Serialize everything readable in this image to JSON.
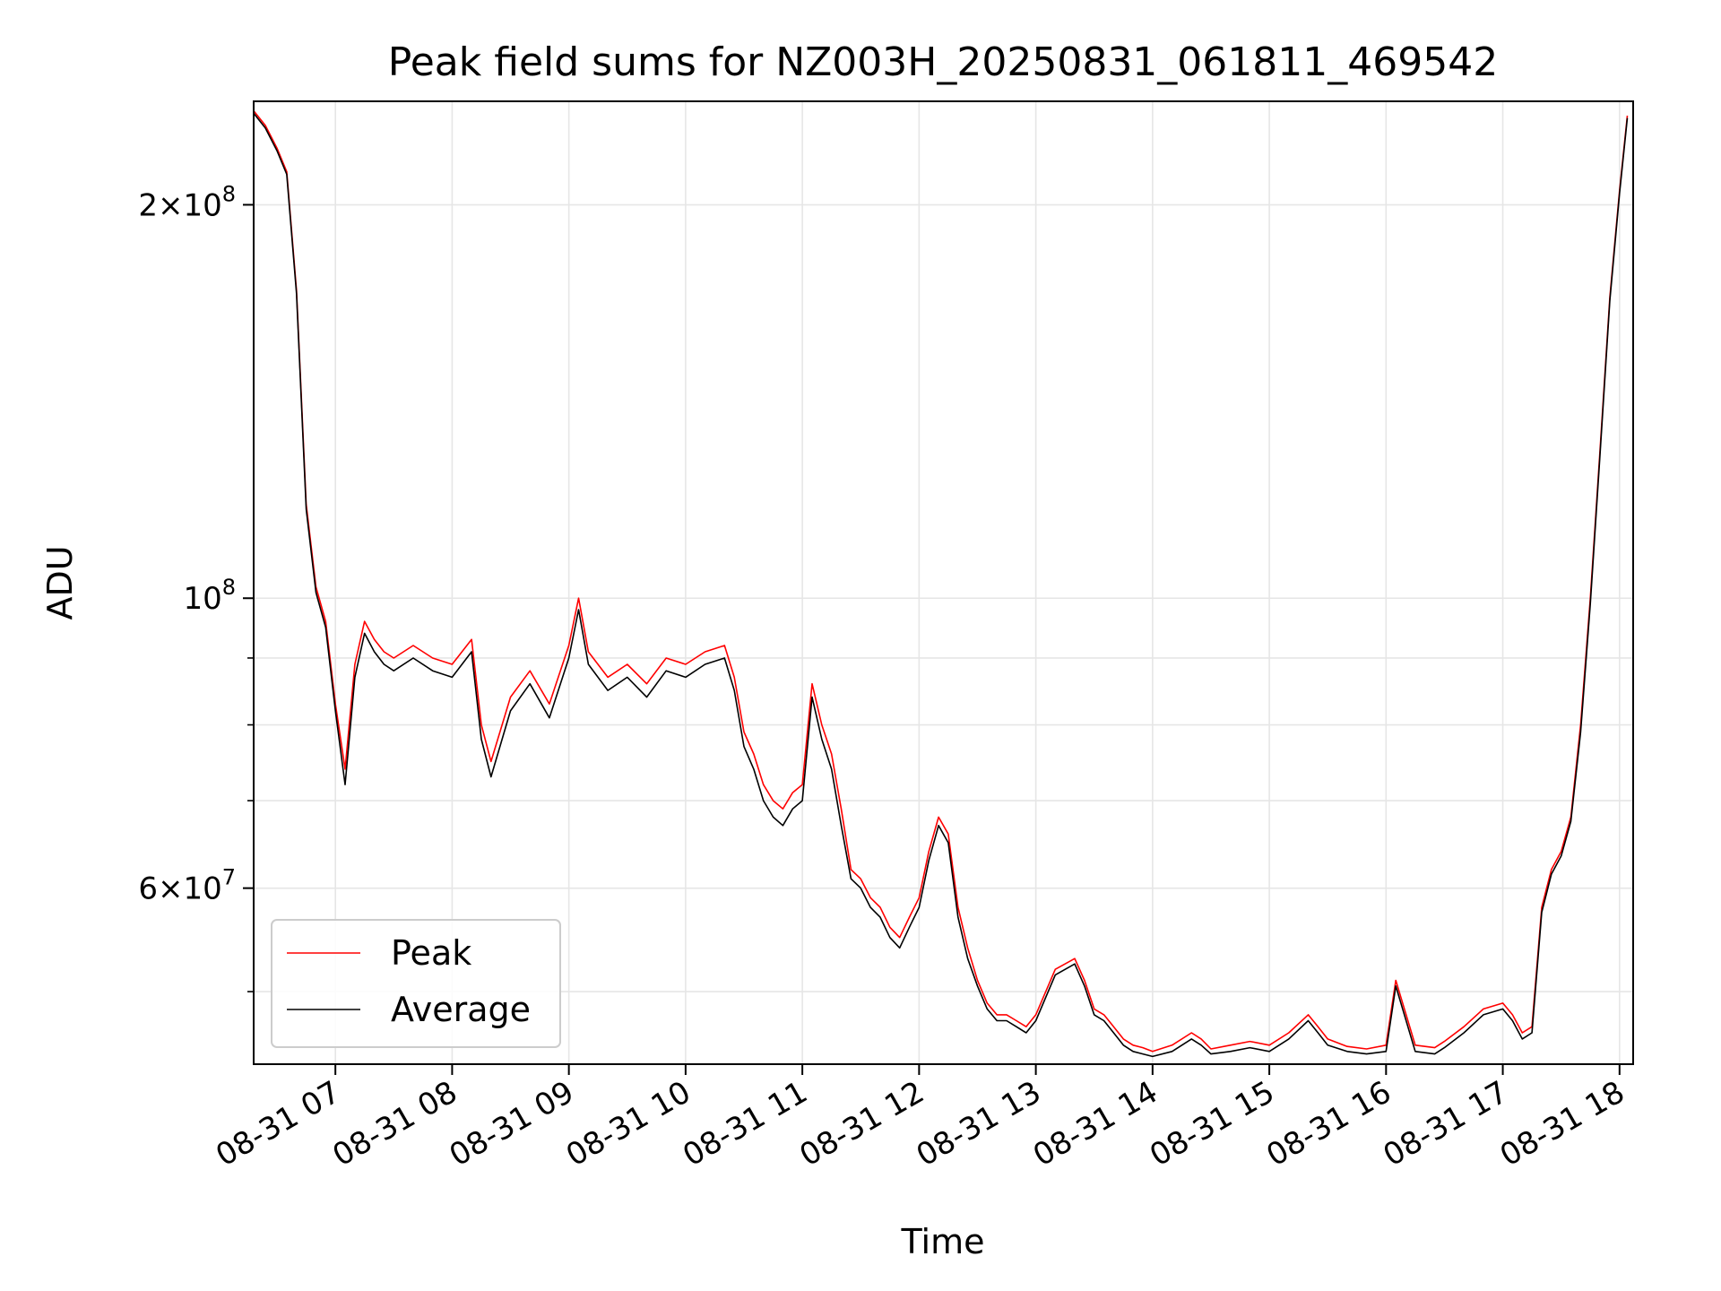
{
  "chart_data": {
    "type": "line",
    "title": "Peak field sums for NZ003H_20250831_061811_469542",
    "xlabel": "Time",
    "ylabel": "ADU",
    "yscale": "log",
    "ylim": [
      44000000,
      240000000
    ],
    "xlim": [
      "2025-08-31 06:18",
      "2025-08-31 18:07"
    ],
    "x_ticks": [
      {
        "t": "2025-08-31 07:00",
        "label": "08-31 07"
      },
      {
        "t": "2025-08-31 08:00",
        "label": "08-31 08"
      },
      {
        "t": "2025-08-31 09:00",
        "label": "08-31 09"
      },
      {
        "t": "2025-08-31 10:00",
        "label": "08-31 10"
      },
      {
        "t": "2025-08-31 11:00",
        "label": "08-31 11"
      },
      {
        "t": "2025-08-31 12:00",
        "label": "08-31 12"
      },
      {
        "t": "2025-08-31 13:00",
        "label": "08-31 13"
      },
      {
        "t": "2025-08-31 14:00",
        "label": "08-31 14"
      },
      {
        "t": "2025-08-31 15:00",
        "label": "08-31 15"
      },
      {
        "t": "2025-08-31 16:00",
        "label": "08-31 16"
      },
      {
        "t": "2025-08-31 17:00",
        "label": "08-31 17"
      },
      {
        "t": "2025-08-31 18:00",
        "label": "08-31 18"
      }
    ],
    "y_major_ticks": [
      {
        "value": 60000000,
        "mant": "6",
        "exp": "7"
      },
      {
        "value": 100000000,
        "mant": "",
        "exp": "8"
      },
      {
        "value": 200000000,
        "mant": "2",
        "exp": "8"
      }
    ],
    "y_minor_ticks": [
      50000000,
      70000000,
      80000000,
      90000000
    ],
    "grid": true,
    "legend": {
      "position": "lower-left"
    },
    "series": [
      {
        "name": "Peak",
        "color": "#ff0000",
        "x": [
          "2025-08-31 06:18",
          "2025-08-31 06:24",
          "2025-08-31 06:30",
          "2025-08-31 06:35",
          "2025-08-31 06:40",
          "2025-08-31 06:45",
          "2025-08-31 06:50",
          "2025-08-31 06:55",
          "2025-08-31 07:00",
          "2025-08-31 07:05",
          "2025-08-31 07:10",
          "2025-08-31 07:15",
          "2025-08-31 07:20",
          "2025-08-31 07:25",
          "2025-08-31 07:30",
          "2025-08-31 07:40",
          "2025-08-31 07:50",
          "2025-08-31 08:00",
          "2025-08-31 08:10",
          "2025-08-31 08:15",
          "2025-08-31 08:20",
          "2025-08-31 08:30",
          "2025-08-31 08:40",
          "2025-08-31 08:50",
          "2025-08-31 09:00",
          "2025-08-31 09:05",
          "2025-08-31 09:10",
          "2025-08-31 09:20",
          "2025-08-31 09:30",
          "2025-08-31 09:40",
          "2025-08-31 09:50",
          "2025-08-31 10:00",
          "2025-08-31 10:10",
          "2025-08-31 10:20",
          "2025-08-31 10:25",
          "2025-08-31 10:30",
          "2025-08-31 10:35",
          "2025-08-31 10:40",
          "2025-08-31 10:45",
          "2025-08-31 10:50",
          "2025-08-31 10:55",
          "2025-08-31 11:00",
          "2025-08-31 11:05",
          "2025-08-31 11:10",
          "2025-08-31 11:15",
          "2025-08-31 11:20",
          "2025-08-31 11:25",
          "2025-08-31 11:30",
          "2025-08-31 11:35",
          "2025-08-31 11:40",
          "2025-08-31 11:45",
          "2025-08-31 11:50",
          "2025-08-31 11:55",
          "2025-08-31 12:00",
          "2025-08-31 12:05",
          "2025-08-31 12:10",
          "2025-08-31 12:15",
          "2025-08-31 12:20",
          "2025-08-31 12:25",
          "2025-08-31 12:30",
          "2025-08-31 12:35",
          "2025-08-31 12:40",
          "2025-08-31 12:45",
          "2025-08-31 12:50",
          "2025-08-31 12:55",
          "2025-08-31 13:00",
          "2025-08-31 13:10",
          "2025-08-31 13:20",
          "2025-08-31 13:25",
          "2025-08-31 13:30",
          "2025-08-31 13:35",
          "2025-08-31 13:40",
          "2025-08-31 13:45",
          "2025-08-31 13:50",
          "2025-08-31 13:55",
          "2025-08-31 14:00",
          "2025-08-31 14:10",
          "2025-08-31 14:20",
          "2025-08-31 14:25",
          "2025-08-31 14:30",
          "2025-08-31 14:40",
          "2025-08-31 14:50",
          "2025-08-31 15:00",
          "2025-08-31 15:10",
          "2025-08-31 15:20",
          "2025-08-31 15:25",
          "2025-08-31 15:30",
          "2025-08-31 15:40",
          "2025-08-31 15:50",
          "2025-08-31 16:00",
          "2025-08-31 16:05",
          "2025-08-31 16:15",
          "2025-08-31 16:25",
          "2025-08-31 16:30",
          "2025-08-31 16:40",
          "2025-08-31 16:50",
          "2025-08-31 17:00",
          "2025-08-31 17:05",
          "2025-08-31 17:10",
          "2025-08-31 17:15",
          "2025-08-31 17:20",
          "2025-08-31 17:25",
          "2025-08-31 17:30",
          "2025-08-31 17:35",
          "2025-08-31 17:40",
          "2025-08-31 17:45",
          "2025-08-31 17:50",
          "2025-08-31 17:55",
          "2025-08-31 18:00",
          "2025-08-31 18:04"
        ],
        "values": [
          236000000,
          230000000,
          221000000,
          212000000,
          172000000,
          118000000,
          102000000,
          96000000,
          83000000,
          74000000,
          89000000,
          96000000,
          93000000,
          91000000,
          90000000,
          92000000,
          90000000,
          89000000,
          93000000,
          80000000,
          75000000,
          84000000,
          88000000,
          83000000,
          92000000,
          100000000,
          91000000,
          87000000,
          89000000,
          86000000,
          90000000,
          89000000,
          91000000,
          92000000,
          87000000,
          79000000,
          76000000,
          72000000,
          70000000,
          69000000,
          71000000,
          72000000,
          86000000,
          80000000,
          76000000,
          69000000,
          62000000,
          61000000,
          59000000,
          58000000,
          56000000,
          55000000,
          57000000,
          59000000,
          64000000,
          68000000,
          66000000,
          58000000,
          54000000,
          51000000,
          49000000,
          48000000,
          48000000,
          47500000,
          47000000,
          48000000,
          52000000,
          53000000,
          51000000,
          48500000,
          48000000,
          47000000,
          46000000,
          45500000,
          45300000,
          45000000,
          45500000,
          46500000,
          46000000,
          45200000,
          45500000,
          45800000,
          45500000,
          46500000,
          48000000,
          47000000,
          46000000,
          45400000,
          45200000,
          45500000,
          51000000,
          45500000,
          45300000,
          45800000,
          47000000,
          48500000,
          49000000,
          48000000,
          46500000,
          47000000,
          58000000,
          62000000,
          64000000,
          68000000,
          80000000,
          100000000,
          130000000,
          170000000,
          205000000,
          234000000
        ]
      },
      {
        "name": "Average",
        "color": "#000000",
        "x": [
          "2025-08-31 06:18",
          "2025-08-31 06:24",
          "2025-08-31 06:30",
          "2025-08-31 06:35",
          "2025-08-31 06:40",
          "2025-08-31 06:45",
          "2025-08-31 06:50",
          "2025-08-31 06:55",
          "2025-08-31 07:00",
          "2025-08-31 07:05",
          "2025-08-31 07:10",
          "2025-08-31 07:15",
          "2025-08-31 07:20",
          "2025-08-31 07:25",
          "2025-08-31 07:30",
          "2025-08-31 07:40",
          "2025-08-31 07:50",
          "2025-08-31 08:00",
          "2025-08-31 08:10",
          "2025-08-31 08:15",
          "2025-08-31 08:20",
          "2025-08-31 08:30",
          "2025-08-31 08:40",
          "2025-08-31 08:50",
          "2025-08-31 09:00",
          "2025-08-31 09:05",
          "2025-08-31 09:10",
          "2025-08-31 09:20",
          "2025-08-31 09:30",
          "2025-08-31 09:40",
          "2025-08-31 09:50",
          "2025-08-31 10:00",
          "2025-08-31 10:10",
          "2025-08-31 10:20",
          "2025-08-31 10:25",
          "2025-08-31 10:30",
          "2025-08-31 10:35",
          "2025-08-31 10:40",
          "2025-08-31 10:45",
          "2025-08-31 10:50",
          "2025-08-31 10:55",
          "2025-08-31 11:00",
          "2025-08-31 11:05",
          "2025-08-31 11:10",
          "2025-08-31 11:15",
          "2025-08-31 11:20",
          "2025-08-31 11:25",
          "2025-08-31 11:30",
          "2025-08-31 11:35",
          "2025-08-31 11:40",
          "2025-08-31 11:45",
          "2025-08-31 11:50",
          "2025-08-31 11:55",
          "2025-08-31 12:00",
          "2025-08-31 12:05",
          "2025-08-31 12:10",
          "2025-08-31 12:15",
          "2025-08-31 12:20",
          "2025-08-31 12:25",
          "2025-08-31 12:30",
          "2025-08-31 12:35",
          "2025-08-31 12:40",
          "2025-08-31 12:45",
          "2025-08-31 12:50",
          "2025-08-31 12:55",
          "2025-08-31 13:00",
          "2025-08-31 13:10",
          "2025-08-31 13:20",
          "2025-08-31 13:25",
          "2025-08-31 13:30",
          "2025-08-31 13:35",
          "2025-08-31 13:40",
          "2025-08-31 13:45",
          "2025-08-31 13:50",
          "2025-08-31 13:55",
          "2025-08-31 14:00",
          "2025-08-31 14:10",
          "2025-08-31 14:20",
          "2025-08-31 14:25",
          "2025-08-31 14:30",
          "2025-08-31 14:40",
          "2025-08-31 14:50",
          "2025-08-31 15:00",
          "2025-08-31 15:10",
          "2025-08-31 15:20",
          "2025-08-31 15:25",
          "2025-08-31 15:30",
          "2025-08-31 15:40",
          "2025-08-31 15:50",
          "2025-08-31 16:00",
          "2025-08-31 16:05",
          "2025-08-31 16:15",
          "2025-08-31 16:25",
          "2025-08-31 16:30",
          "2025-08-31 16:40",
          "2025-08-31 16:50",
          "2025-08-31 17:00",
          "2025-08-31 17:05",
          "2025-08-31 17:10",
          "2025-08-31 17:15",
          "2025-08-31 17:20",
          "2025-08-31 17:25",
          "2025-08-31 17:30",
          "2025-08-31 17:35",
          "2025-08-31 17:40",
          "2025-08-31 17:45",
          "2025-08-31 17:50",
          "2025-08-31 17:55",
          "2025-08-31 18:00",
          "2025-08-31 18:04"
        ],
        "values": [
          235000000,
          229000000,
          220000000,
          211000000,
          171000000,
          117000000,
          101000000,
          95000000,
          82000000,
          72000000,
          87000000,
          94000000,
          91000000,
          89000000,
          88000000,
          90000000,
          88000000,
          87000000,
          91000000,
          78000000,
          73000000,
          82000000,
          86000000,
          81000000,
          90000000,
          98000000,
          89000000,
          85000000,
          87000000,
          84000000,
          88000000,
          87000000,
          89000000,
          90000000,
          85000000,
          77000000,
          74000000,
          70000000,
          68000000,
          67000000,
          69000000,
          70000000,
          84000000,
          78000000,
          74000000,
          67000000,
          61000000,
          60000000,
          58000000,
          57000000,
          55000000,
          54000000,
          56000000,
          58000000,
          63000000,
          67000000,
          65000000,
          57000000,
          53000000,
          50500000,
          48500000,
          47500000,
          47500000,
          47000000,
          46500000,
          47500000,
          51500000,
          52500000,
          50500000,
          48000000,
          47500000,
          46500000,
          45500000,
          45000000,
          44800000,
          44600000,
          45000000,
          46000000,
          45500000,
          44800000,
          45000000,
          45300000,
          45000000,
          46000000,
          47500000,
          46500000,
          45500000,
          45000000,
          44800000,
          45000000,
          50500000,
          45000000,
          44800000,
          45300000,
          46500000,
          48000000,
          48500000,
          47500000,
          46000000,
          46500000,
          57500000,
          61500000,
          63500000,
          67500000,
          79000000,
          99000000,
          129000000,
          169000000,
          204000000,
          233000000
        ]
      }
    ]
  }
}
